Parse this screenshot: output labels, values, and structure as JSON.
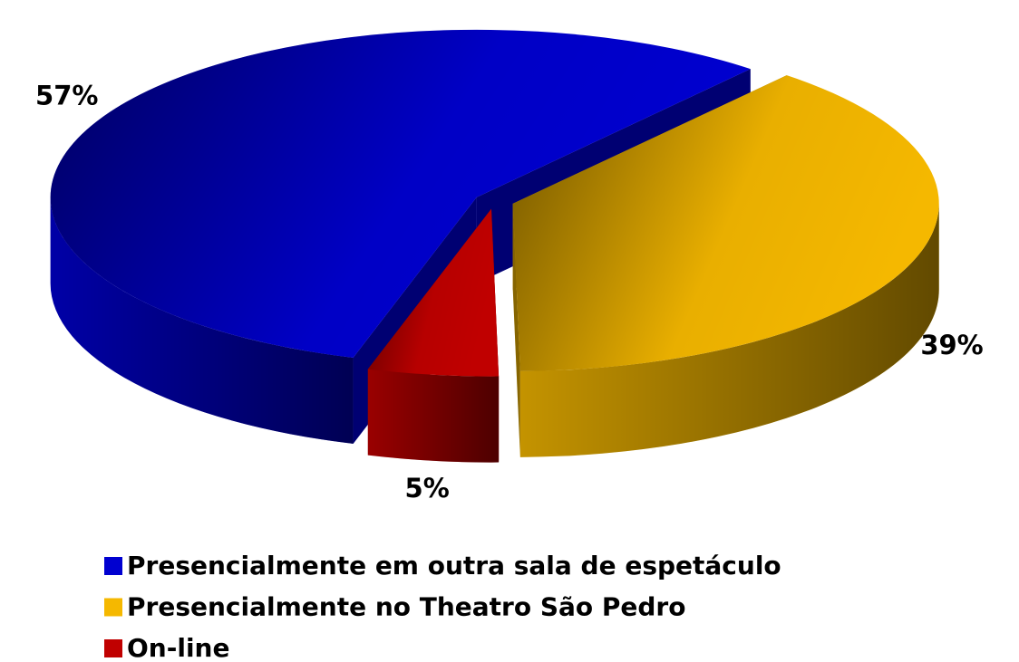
{
  "chart_data": {
    "type": "pie",
    "categories": [
      "Presencialmente no Theatro São Pedro",
      "On-line",
      "Presencialmente em outra sala de espetáculo"
    ],
    "values": [
      39,
      5,
      57
    ],
    "value_labels": [
      "39%",
      "5%",
      "57%"
    ],
    "colors": [
      "#f5b800",
      "#c00000",
      "#0000d0"
    ],
    "legend_order": [
      2,
      0,
      1
    ]
  }
}
